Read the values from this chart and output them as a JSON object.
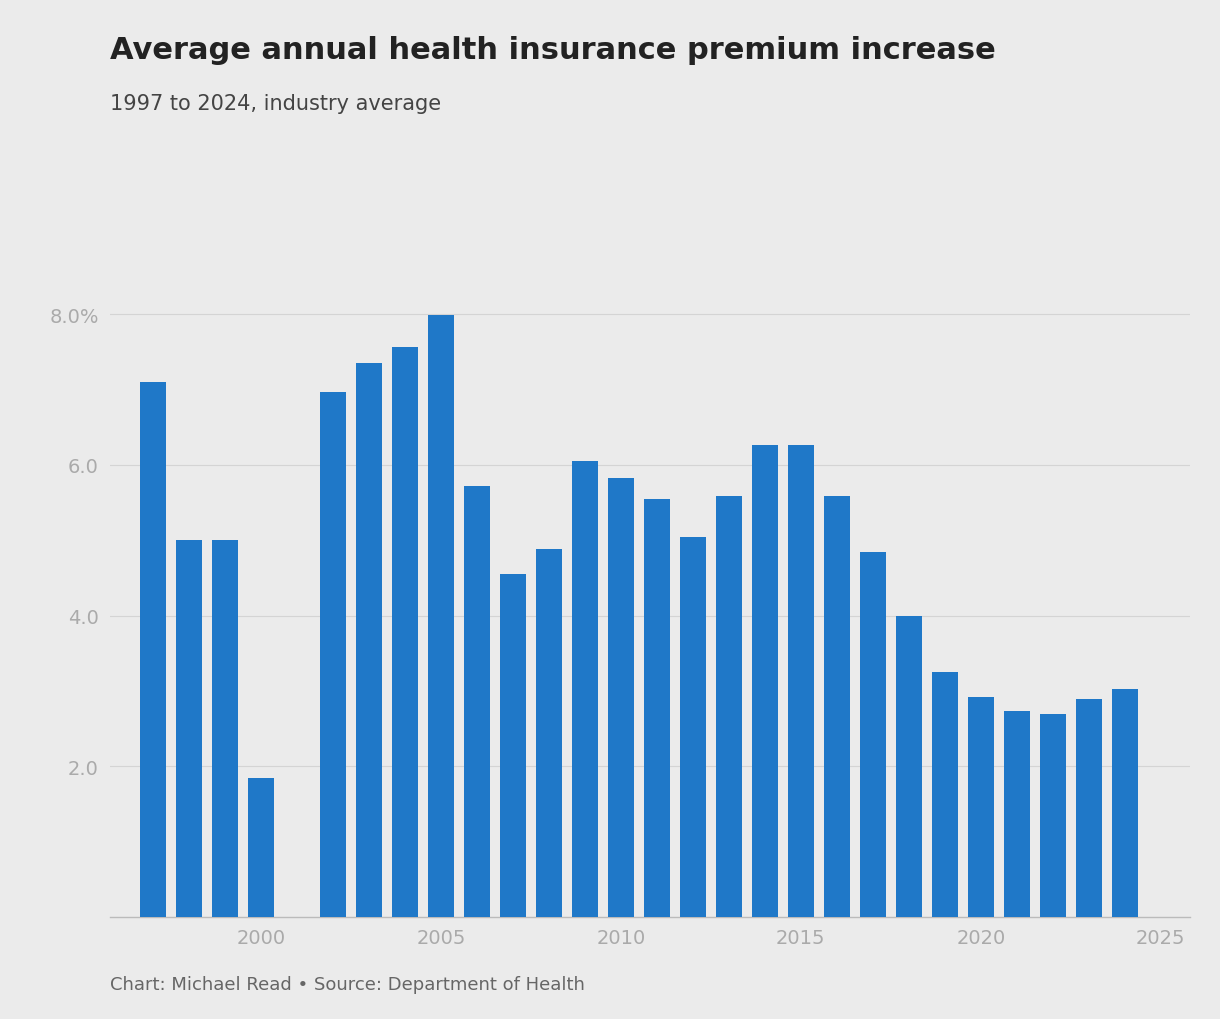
{
  "title": "Average annual health insurance premium increase",
  "subtitle": "1997 to 2024, industry average",
  "footnote": "Chart: Michael Read • Source: Department of Health",
  "years": [
    1997,
    1998,
    1999,
    2000,
    2002,
    2003,
    2004,
    2005,
    2006,
    2007,
    2008,
    2009,
    2010,
    2011,
    2012,
    2013,
    2014,
    2015,
    2016,
    2017,
    2018,
    2019,
    2020,
    2021,
    2022,
    2023,
    2024
  ],
  "values": [
    7.1,
    5.0,
    5.0,
    1.85,
    6.97,
    7.35,
    7.57,
    7.99,
    5.72,
    4.55,
    4.88,
    6.05,
    5.83,
    5.55,
    5.05,
    5.59,
    6.27,
    6.27,
    5.59,
    4.84,
    3.99,
    3.25,
    2.92,
    2.74,
    2.7,
    2.9,
    3.03
  ],
  "bar_color": "#1f78c8",
  "background_color": "#ebebeb",
  "ylim": [
    0,
    8.8
  ],
  "yticks": [
    2.0,
    4.0,
    6.0,
    8.0
  ],
  "ytick_labels": [
    "2.0",
    "4.0",
    "6.0",
    "8.0%"
  ],
  "xticks": [
    2000,
    2005,
    2010,
    2015,
    2020,
    2025
  ],
  "title_fontsize": 22,
  "subtitle_fontsize": 15,
  "footnote_fontsize": 13,
  "tick_label_color": "#aaaaaa",
  "grid_color": "#d4d4d4",
  "title_color": "#222222",
  "subtitle_color": "#444444",
  "footnote_color": "#666666"
}
